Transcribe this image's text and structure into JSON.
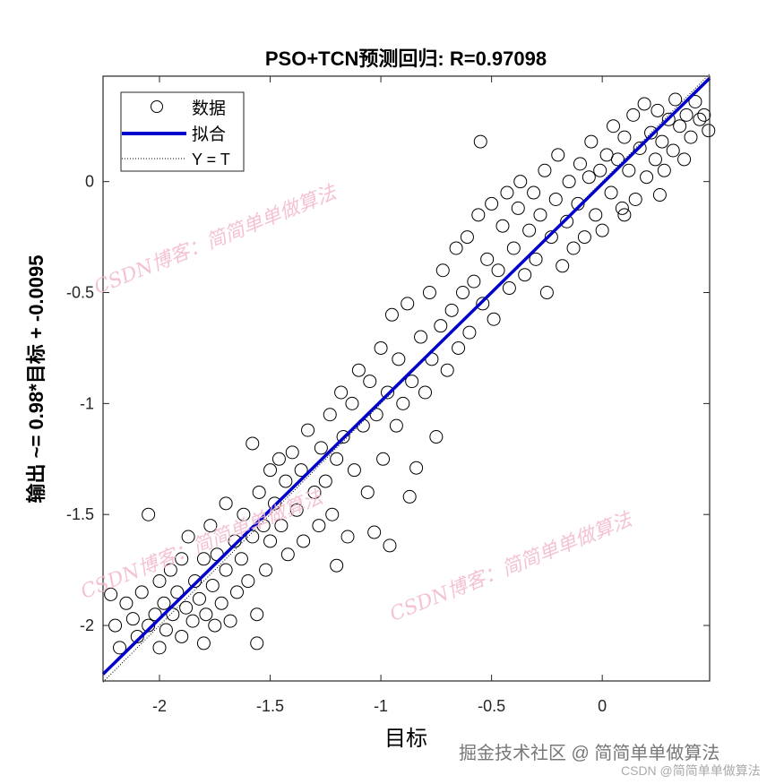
{
  "chart_data": {
    "type": "scatter",
    "title": "PSO+TCN预测回归: R=0.97098",
    "xlabel": "目标",
    "ylabel": "输出 ~= 0.98*目标 + -0.0095",
    "xlim": [
      -2.255,
      0.485
    ],
    "ylim": [
      -2.25,
      0.475
    ],
    "xticks": [
      -2,
      -1.5,
      -1,
      -0.5,
      0
    ],
    "yticks": [
      0,
      -0.5,
      -1,
      -1.5,
      -2
    ],
    "xtick_labels": [
      "-2",
      "-1.5",
      "-1",
      "-0.5",
      "0"
    ],
    "ytick_labels": [
      "0",
      "-0.5",
      "-1",
      "-1.5",
      "-2"
    ],
    "grid": false,
    "legend": {
      "placement": "top-left",
      "entries": [
        "数据",
        "拟合",
        "Y = T"
      ]
    },
    "fit": {
      "slope": 0.98,
      "intercept": -0.0095,
      "color": "#0000cc"
    },
    "identity_line": {
      "slope": 1,
      "intercept": 0
    },
    "R": 0.97098,
    "points": [
      [
        -2.22,
        -1.86
      ],
      [
        -2.2,
        -2.0
      ],
      [
        -2.18,
        -2.1
      ],
      [
        -2.15,
        -1.9
      ],
      [
        -2.12,
        -1.97
      ],
      [
        -2.1,
        -2.05
      ],
      [
        -2.08,
        -1.85
      ],
      [
        -2.05,
        -1.5
      ],
      [
        -2.05,
        -2.0
      ],
      [
        -2.02,
        -1.95
      ],
      [
        -2.0,
        -2.1
      ],
      [
        -2.0,
        -1.8
      ],
      [
        -1.98,
        -1.9
      ],
      [
        -1.97,
        -2.02
      ],
      [
        -1.95,
        -1.75
      ],
      [
        -1.94,
        -1.95
      ],
      [
        -1.92,
        -1.85
      ],
      [
        -1.9,
        -2.05
      ],
      [
        -1.9,
        -1.7
      ],
      [
        -1.88,
        -1.92
      ],
      [
        -1.87,
        -1.6
      ],
      [
        -1.85,
        -1.98
      ],
      [
        -1.84,
        -1.8
      ],
      [
        -1.82,
        -1.88
      ],
      [
        -1.8,
        -1.7
      ],
      [
        -1.8,
        -2.08
      ],
      [
        -1.79,
        -1.95
      ],
      [
        -1.77,
        -1.55
      ],
      [
        -1.76,
        -1.82
      ],
      [
        -1.75,
        -2.0
      ],
      [
        -1.74,
        -1.68
      ],
      [
        -1.72,
        -1.9
      ],
      [
        -1.7,
        -1.75
      ],
      [
        -1.7,
        -1.45
      ],
      [
        -1.68,
        -1.98
      ],
      [
        -1.66,
        -1.62
      ],
      [
        -1.65,
        -1.85
      ],
      [
        -1.63,
        -1.7
      ],
      [
        -1.62,
        -1.5
      ],
      [
        -1.6,
        -1.8
      ],
      [
        -1.58,
        -1.18
      ],
      [
        -1.58,
        -1.6
      ],
      [
        -1.56,
        -1.95
      ],
      [
        -1.56,
        -2.08
      ],
      [
        -1.55,
        -1.4
      ],
      [
        -1.53,
        -1.55
      ],
      [
        -1.52,
        -1.75
      ],
      [
        -1.5,
        -1.3
      ],
      [
        -1.5,
        -1.62
      ],
      [
        -1.48,
        -1.45
      ],
      [
        -1.46,
        -1.25
      ],
      [
        -1.45,
        -1.55
      ],
      [
        -1.43,
        -1.35
      ],
      [
        -1.42,
        -1.68
      ],
      [
        -1.4,
        -1.22
      ],
      [
        -1.38,
        -1.48
      ],
      [
        -1.36,
        -1.3
      ],
      [
        -1.35,
        -1.62
      ],
      [
        -1.33,
        -1.12
      ],
      [
        -1.3,
        -1.4
      ],
      [
        -1.28,
        -1.55
      ],
      [
        -1.27,
        -1.2
      ],
      [
        -1.25,
        -1.35
      ],
      [
        -1.23,
        -1.05
      ],
      [
        -1.22,
        -1.5
      ],
      [
        -1.2,
        -1.73
      ],
      [
        -1.2,
        -1.25
      ],
      [
        -1.18,
        -0.95
      ],
      [
        -1.17,
        -1.15
      ],
      [
        -1.15,
        -1.6
      ],
      [
        -1.13,
        -1.0
      ],
      [
        -1.12,
        -1.3
      ],
      [
        -1.1,
        -0.85
      ],
      [
        -1.08,
        -1.1
      ],
      [
        -1.06,
        -1.4
      ],
      [
        -1.05,
        -0.9
      ],
      [
        -1.03,
        -1.58
      ],
      [
        -1.02,
        -1.05
      ],
      [
        -1.0,
        -0.75
      ],
      [
        -0.99,
        -1.25
      ],
      [
        -0.97,
        -0.95
      ],
      [
        -0.96,
        -1.64
      ],
      [
        -0.95,
        -0.6
      ],
      [
        -0.93,
        -1.1
      ],
      [
        -0.92,
        -0.8
      ],
      [
        -0.9,
        -1.0
      ],
      [
        -0.88,
        -0.55
      ],
      [
        -0.87,
        -1.42
      ],
      [
        -0.86,
        -0.9
      ],
      [
        -0.84,
        -1.29
      ],
      [
        -0.82,
        -0.7
      ],
      [
        -0.8,
        -0.95
      ],
      [
        -0.78,
        -0.5
      ],
      [
        -0.77,
        -0.8
      ],
      [
        -0.75,
        -1.15
      ],
      [
        -0.73,
        -0.65
      ],
      [
        -0.72,
        -0.4
      ],
      [
        -0.7,
        -0.85
      ],
      [
        -0.68,
        -0.58
      ],
      [
        -0.66,
        -0.3
      ],
      [
        -0.65,
        -0.75
      ],
      [
        -0.63,
        -0.5
      ],
      [
        -0.61,
        -0.25
      ],
      [
        -0.6,
        -0.68
      ],
      [
        -0.58,
        -0.45
      ],
      [
        -0.56,
        -0.15
      ],
      [
        -0.55,
        0.18
      ],
      [
        -0.54,
        -0.55
      ],
      [
        -0.52,
        -0.35
      ],
      [
        -0.5,
        -0.1
      ],
      [
        -0.49,
        -0.62
      ],
      [
        -0.47,
        -0.4
      ],
      [
        -0.45,
        -0.2
      ],
      [
        -0.43,
        -0.05
      ],
      [
        -0.42,
        -0.48
      ],
      [
        -0.4,
        -0.3
      ],
      [
        -0.38,
        -0.12
      ],
      [
        -0.37,
        0.0
      ],
      [
        -0.35,
        -0.42
      ],
      [
        -0.33,
        -0.22
      ],
      [
        -0.31,
        -0.05
      ],
      [
        -0.3,
        -0.35
      ],
      [
        -0.28,
        -0.15
      ],
      [
        -0.26,
        0.05
      ],
      [
        -0.25,
        -0.5
      ],
      [
        -0.23,
        -0.25
      ],
      [
        -0.21,
        -0.08
      ],
      [
        -0.2,
        0.12
      ],
      [
        -0.18,
        -0.38
      ],
      [
        -0.16,
        -0.18
      ],
      [
        -0.15,
        0.0
      ],
      [
        -0.13,
        -0.3
      ],
      [
        -0.11,
        -0.1
      ],
      [
        -0.1,
        0.08
      ],
      [
        -0.08,
        -0.25
      ],
      [
        -0.06,
        0.02
      ],
      [
        -0.05,
        0.18
      ],
      [
        -0.03,
        -0.15
      ],
      [
        -0.01,
        0.05
      ],
      [
        0.0,
        -0.22
      ],
      [
        0.02,
        0.12
      ],
      [
        0.04,
        -0.05
      ],
      [
        0.05,
        0.25
      ],
      [
        0.07,
        0.1
      ],
      [
        0.09,
        -0.12
      ],
      [
        0.1,
        0.2
      ],
      [
        0.12,
        0.05
      ],
      [
        0.14,
        0.3
      ],
      [
        0.15,
        -0.08
      ],
      [
        0.17,
        0.15
      ],
      [
        0.19,
        0.35
      ],
      [
        0.2,
        0.02
      ],
      [
        0.22,
        0.22
      ],
      [
        0.24,
        0.1
      ],
      [
        0.25,
        0.32
      ],
      [
        0.27,
        0.18
      ],
      [
        0.28,
        0.05
      ],
      [
        0.3,
        0.28
      ],
      [
        0.32,
        0.14
      ],
      [
        0.33,
        0.37
      ],
      [
        0.35,
        0.25
      ],
      [
        0.37,
        0.1
      ],
      [
        0.38,
        0.3
      ],
      [
        0.4,
        0.2
      ],
      [
        0.42,
        0.36
      ],
      [
        0.44,
        0.28
      ],
      [
        0.46,
        0.3
      ],
      [
        0.48,
        0.23
      ],
      [
        0.26,
        -0.06
      ],
      [
        0.1,
        -0.15
      ]
    ]
  },
  "watermarks": [
    "CSDN博客：简简单单做算法",
    "CSDN博客：简简单单做算法",
    "CSDN博客：简简单单做算法"
  ],
  "footer": {
    "site": "掘金技术社区 @ 简简单单做算法",
    "csdn": "CSDN @简简单单做算法"
  }
}
